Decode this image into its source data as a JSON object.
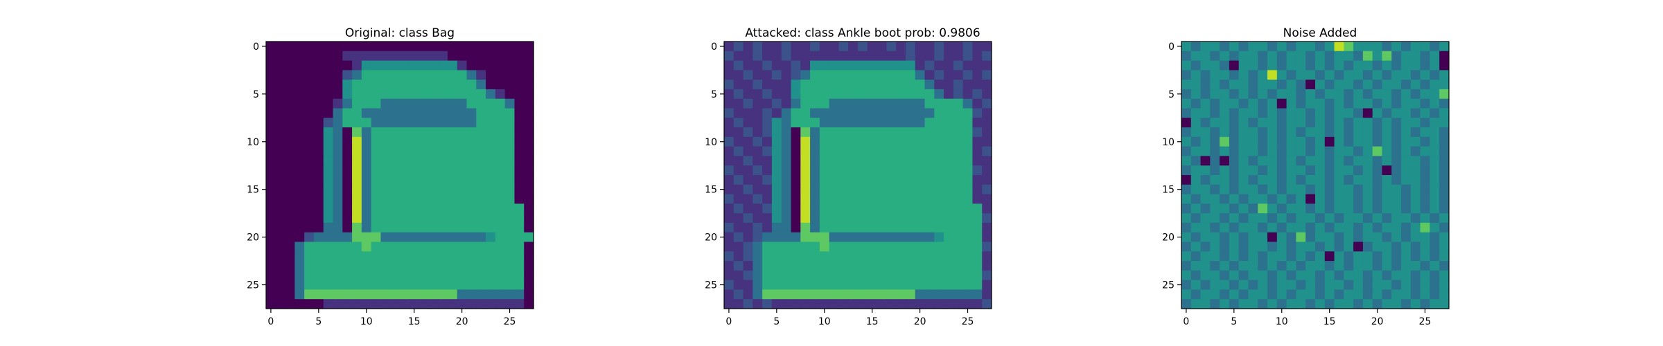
{
  "chart_data": [
    {
      "type": "heatmap",
      "title": "Original: class Bag",
      "xlabel": "",
      "ylabel": "",
      "xlim": [
        -0.5,
        27.5
      ],
      "ylim": [
        27.5,
        -0.5
      ],
      "xticks": [
        0,
        5,
        10,
        15,
        20,
        25
      ],
      "yticks": [
        0,
        5,
        10,
        15,
        20,
        25
      ],
      "colormap": "viridis",
      "grid": false,
      "rows": [
        "............................",
        "........:::::::::::.........",
        ".........:oooooooooo:.......",
        "........-+OOOOOOOOOOO+:.....",
        "........oOOOOOOOOOOOOO+.....",
        "........oOOOOOOOOOOOOOO+:...",
        ".......:+OOO+++++++++OOOO+..",
        ".......+OO++++++++++++OOOO..",
        "......-+OOO+++++++++++OOOO..",
        "......o+.*+OOOOOOOOOOOOOOO..",
        "......o+.#+OOOOOOOOOOOOOOO..",
        "......o+.#+OOOOOOOOOOOOOOO..",
        "......o+.#+OOOOOOOOOOOOOOO..",
        "......o+.#+OOOOOOOOOOOOOOO..",
        "......o+.#+OOOOOOOOOOOOOOO..",
        "......o+.#+OOOOOOOOOOOOOOO..",
        "......o+.#+OOOOOOOOOOOOOOO..",
        "......o+.#+OOOOOOOOOOOOOOOO.",
        "......o+.#+OOOOOOOOOOOOOOOO.",
        "......++.*+OOOOOOOOOOOOOOOO.",
        "....-++++***+++++++++++oOOOO.",
        "...+OOOOOO*OOOOOOOOOOOOOOOO.",
        "...+OOOOOOOOOOOOOOOOOOOOOOO.",
        "...+OOOOOOOOOOOOOOOOOOOOOOO.",
        "...+OOOOOOOOOOOOOOOOOOOOOOO.",
        "...+OOOOOOOOOOOOOOOOOOOOOOO.",
        "...+****************+++++++.",
        "......:::::::::::::::::::::."
      ]
    },
    {
      "type": "heatmap",
      "title": "Attacked: class Ankle boot prob: 0.9806",
      "xlabel": "",
      "ylabel": "",
      "xlim": [
        -0.5,
        27.5
      ],
      "ylim": [
        27.5,
        -0.5
      ],
      "xticks": [
        0,
        5,
        10,
        15,
        20,
        25
      ],
      "yticks": [
        0,
        5,
        10,
        15,
        20,
        25
      ],
      "colormap": "viridis",
      "grid": false,
      "rows": [
        ":-:-::-::-::-:-::-:-::-::-::",
        "-::-::-::::::::::::-::-::-:-",
        ":-::-::-:ooooooooooo:-::-:::",
        "::-::-:-+OOOOOOOOOOO+:-::-:-",
        "-::-:::oOOOOOOOOOOOOO+::-:::",
        ":-::-::oOOOOOOOOOOOOOO+:-:-:",
        "::-::-:+OOO++++++++++OOOO+:-",
        "-:::-:+OO+++++++++++++OOOO-:",
        ":-::-o+OOO+++++++++++OOOOO::",
        "::-:-o+.*+OOOOOOOOOOOOOOOO-:",
        "-::-:o+.#+OOOOOOOOOOOOOOOO::",
        ":-::-o+.#+OOOOOOOOOOOOOOOO:-",
        "::-::o+.#+OOOOOOOOOOOOOOOO::",
        "-::-:o+.#+OOOOOOOOOOOOOOOO-:",
        ":-::-o+.#+OOOOOOOOOOOOOOOO::",
        "::-::o+.#+OOOOOOOOOOOOOOOO:-",
        "-::-:o+.#+OOOOOOOOOOOOOOOO::",
        ":-::-o+.#+OOOOOOOOOOOOOOOOO:",
        "::-::o+.#+OOOOOOOOOOOOOOOOO-",
        "-::-:++.*+OOOOOOOOOOOOOOOOO:",
        ":-:-++++***+++++++++++oOOOO:",
        "::-+OOOOOO*OOOOOOOOOOOOOOOO-",
        "-:-+OOOOOOOOOOOOOOOOOOOOOOO:",
        ":-:+OOOOOOOOOOOOOOOOOOOOOOO:",
        "::-+OOOOOOOOOOOOOOOOOOOOOOO-",
        "-::+OOOOOOOOOOOOOOOOOOOOOOO:",
        ":-:+****************+++++++:",
        "::-:-::::::::::::::::::::::-"
      ]
    },
    {
      "type": "heatmap",
      "title": "Noise Added",
      "xlabel": "",
      "ylabel": "",
      "xlim": [
        -0.5,
        27.5
      ],
      "ylim": [
        27.5,
        -0.5
      ],
      "xticks": [
        0,
        5,
        10,
        15,
        20,
        25
      ],
      "yticks": [
        0,
        5,
        10,
        15,
        20,
        25
      ],
      "colormap": "viridis",
      "grid": false,
      "rows": [
        "o+oo+o+oo+o+oo+o#*ooo+o+oo+o",
        "+oo+o+oo+o+oo+o+oo+*o*+oo+o.",
        "o+oo+.oo+o+oo+o+o+oo+o+oo+o.",
        "+o+oo+o+o#o+oo+o+oo+o+oo+o+o",
        "oo+o+oo+oo+o+.o+oo+o+oo+o+oo",
        "+o+oo+o+o+oo+o+oo+o+oo+o+oo*",
        "o+o+oo+o+o.o+oo+o+oo+o+oo+o+",
        "+oo+o+oo+o+oo+o+oo+.o+oo+o+o",
        ".o+oo+o+oo+oo+o+o+oo+o+oo+oo",
        "+oo+o+oo+o+o+oo+o+oo+o+o+oo+",
        "o+o+*+oo+o+oo+o.o+oo+o+oo+o+",
        "+oo+o+oo+o+oo+o+oo+o*o+o+oo+",
        "o+.+.+o+oo+o+oo+o+oo+o+oo+o+",
        "+oo+o+oo+o+oo+o+oo+o+.+oo+o+",
        ".o+oo+o+oo+o+oo+o+oo+o+oo+o+",
        "+oo+o+oo+o+oo+o+oo+o+oo+o+o+",
        "o+oo+o+oo+o+o.o+oo+o+oo+o+o+",
        "+o+oo+o+*o+oo+o+oo+o+oo+o+o+",
        "o+oo+o+oo+o+oo+o+oo+o+oo+o+o",
        "+oo+o+oo+o+oo+o+oo+o+oo+o*o+",
        "o+oo+o+oo.o+*+oo+o+oo+o+oo+o",
        "+o+o+o+oo+o+oo+o+o.+oo+o+o+o",
        "o+oo+o+o+oo+o+o.o+oo+o+o+o+o",
        "+oo+o+oo+o+o+oo+o+oo+o+oo+o+",
        "o+oo+o+oo+o+oo+o+oo+o+oo+o+o",
        "+o+oo+o+o+oo+o+oo+o+oo+o+o+o",
        "o+oo+o+oo+o+oo+o+oo+o+oo+o+o",
        "+oo+o+oo+o+oo+o+oo+o+oo+o+oo"
      ]
    }
  ]
}
